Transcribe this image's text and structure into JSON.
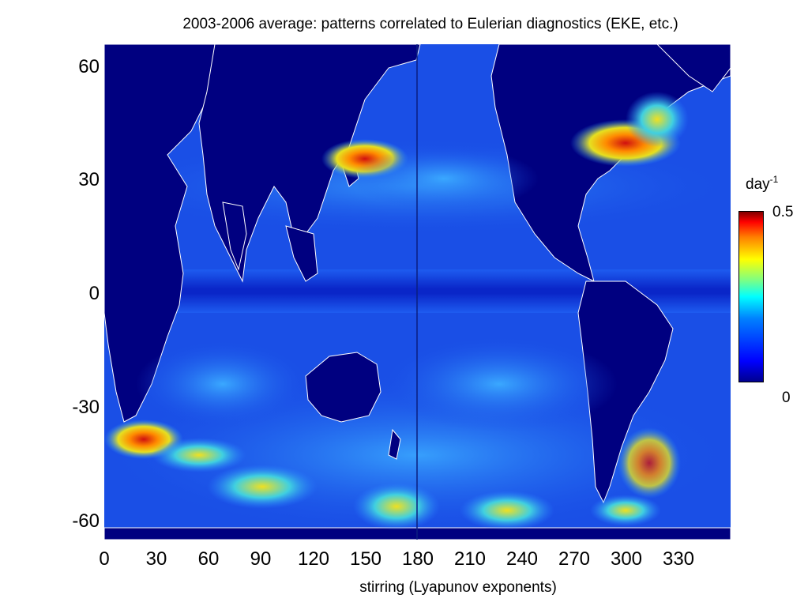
{
  "title": "2003-2006 average: patterns correlated to Eulerian diagnostics (EKE, etc.)",
  "x_axis": {
    "label": "stirring (Lyapunov exponents)",
    "ticks": [
      "0",
      "30",
      "60",
      "90",
      "120",
      "150",
      "180",
      "210",
      "240",
      "270",
      "300",
      "330"
    ]
  },
  "y_axis": {
    "ticks": [
      "60",
      "30",
      "0",
      "-30",
      "-60"
    ]
  },
  "colorbar": {
    "unit_base": "day",
    "unit_exp": "-1",
    "max_label": "0.5",
    "min_label": "0",
    "colormap": "jet"
  },
  "colors": {
    "land": "#000080",
    "ocean_low": "#0a1fd0",
    "ocean_mid": "#2a7bff",
    "coastline": "#ffffff",
    "hot": "#e02010"
  }
}
